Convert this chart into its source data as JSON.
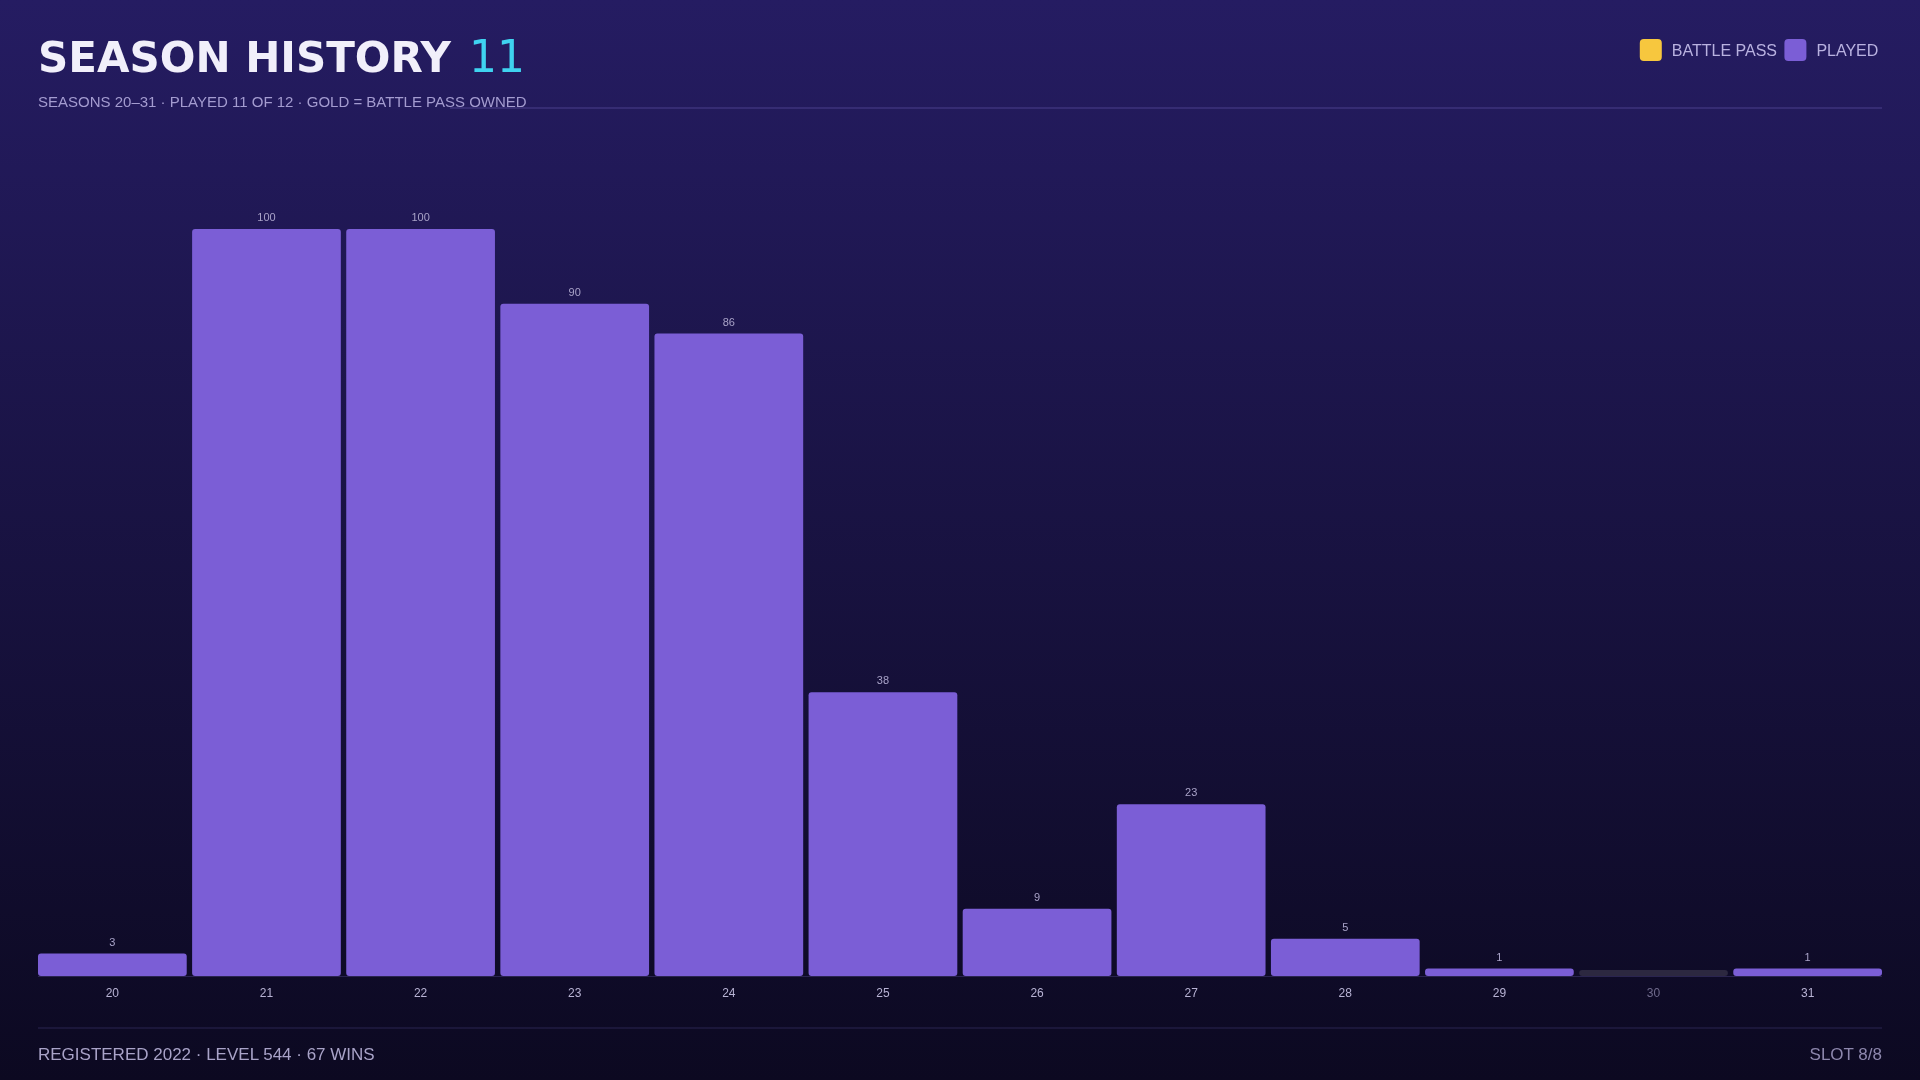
{
  "chart_data": {
    "type": "bar",
    "title": "SEASON HISTORY 11",
    "subtitle": "SEASONS 20–31  ·  PLAYED 11 OF 12  ·  GOLD = BATTLE PASS OWNED",
    "categories": [
      "20",
      "21",
      "22",
      "23",
      "24",
      "25",
      "26",
      "27",
      "28",
      "29",
      "30",
      "31"
    ],
    "series": [
      {
        "name": "BATTLE PASS",
        "color": "#f7c73e",
        "values": [
          null,
          null,
          null,
          null,
          null,
          null,
          null,
          null,
          null,
          null,
          null,
          null
        ]
      },
      {
        "name": "PLAYED",
        "color": "#7b5ed6",
        "values": [
          3,
          100,
          100,
          90,
          86,
          38,
          9,
          23,
          5,
          1,
          null,
          1
        ]
      }
    ],
    "data_labels": true,
    "legend": "top right",
    "annotations": [
      "REGISTERED 2022  ·  LEVEL 544  ·  67 WINS",
      "SLOT 8/8"
    ]
  }
}
